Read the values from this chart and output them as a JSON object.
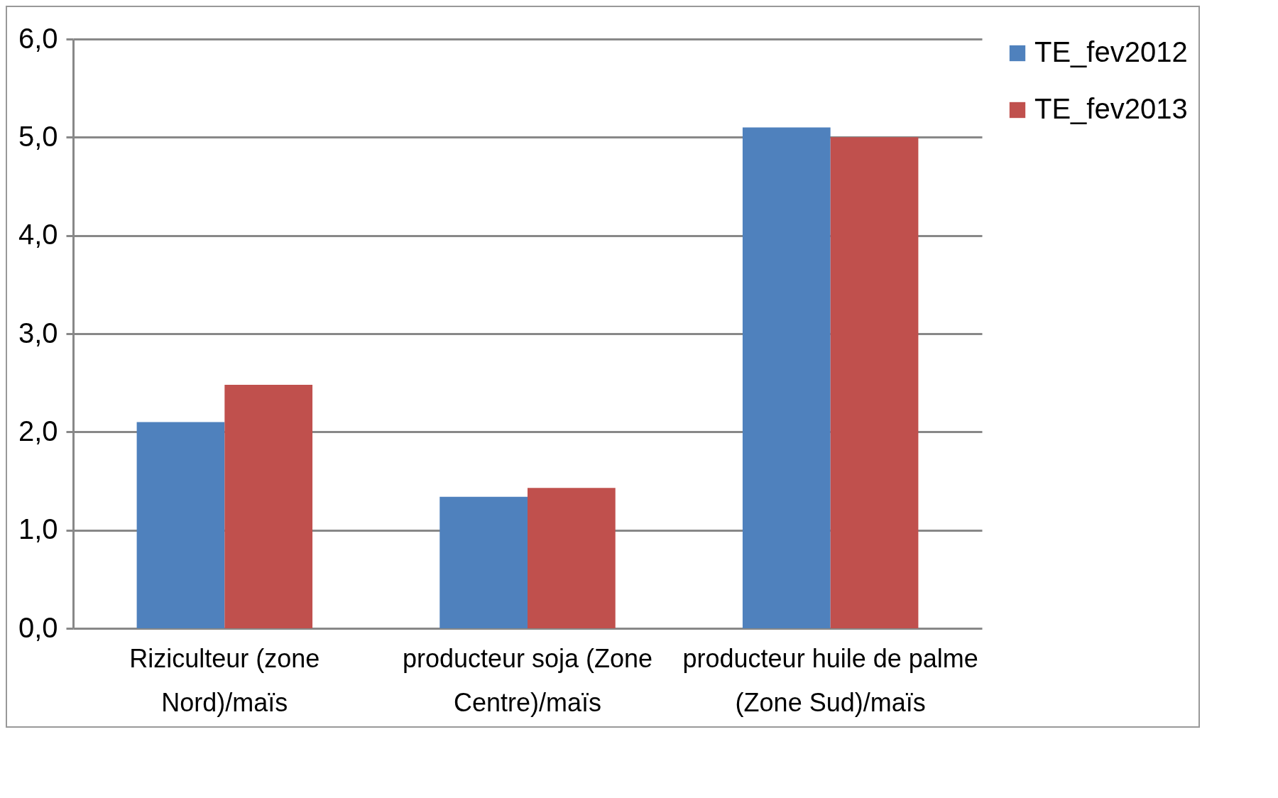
{
  "chart_data": {
    "type": "bar",
    "categories": [
      "Riziculteur (zone Nord)/maïs",
      "producteur soja (Zone Centre)/maïs",
      "producteur huile de palme (Zone Sud)/maïs"
    ],
    "series": [
      {
        "name": "TE_fev2012",
        "color": "#4f81bd",
        "values": [
          2.1,
          1.34,
          5.1
        ]
      },
      {
        "name": "TE_fev2013",
        "color": "#c0504d",
        "values": [
          2.48,
          1.43,
          5.0
        ]
      }
    ],
    "ylim": [
      0,
      6
    ],
    "yticks": [
      {
        "value": 0,
        "label": "0,0"
      },
      {
        "value": 1,
        "label": "1,0"
      },
      {
        "value": 2,
        "label": "2,0"
      },
      {
        "value": 3,
        "label": "3,0"
      },
      {
        "value": 4,
        "label": "4,0"
      },
      {
        "value": 5,
        "label": "5,0"
      },
      {
        "value": 6,
        "label": "6,0"
      }
    ],
    "grid": "y",
    "legend": "right"
  }
}
